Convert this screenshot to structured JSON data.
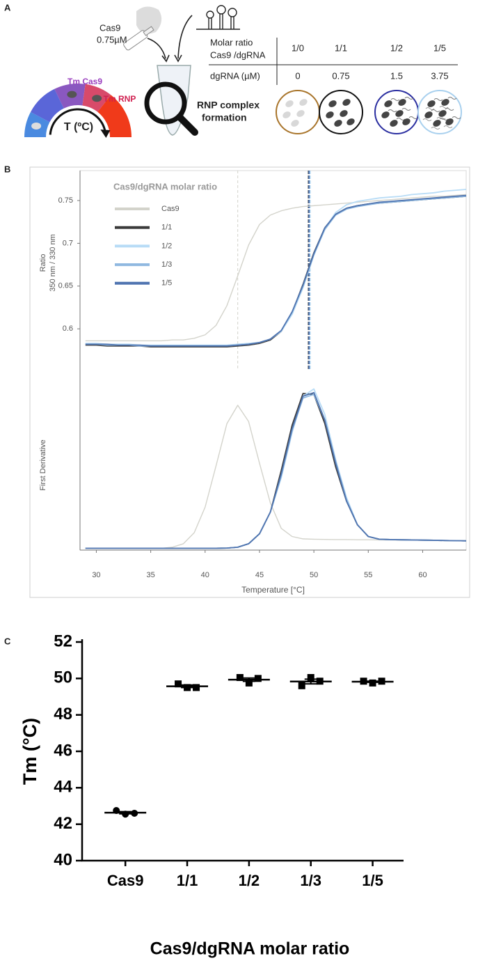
{
  "panel_labels": [
    "A",
    "B",
    "C"
  ],
  "panel_a": {
    "cas9_label": [
      "Cas9",
      "0.75µM"
    ],
    "thermometer": {
      "tm_cas9": "Tm Cas9",
      "tm_rnp": "Tm RNP",
      "axis": "T (ºC)"
    },
    "rnp_label": [
      "RNP complex",
      "formation"
    ],
    "table": {
      "row_headers": [
        [
          "Molar ratio",
          "Cas9 /dgRNA"
        ],
        "dgRNA (µM)"
      ],
      "columns": [
        [
          "1/0",
          "0"
        ],
        [
          "1/1",
          "0.75"
        ],
        [
          "1/2",
          "1.5"
        ],
        [
          "1/5",
          "3.75"
        ]
      ]
    }
  },
  "chart_data": [
    {
      "type": "line",
      "ylabel": [
        "Ratio",
        "350 nm / 330 nm"
      ],
      "legend_title": "Cas9/dgRNA molar ratio",
      "x": [
        29,
        30,
        31,
        32,
        33,
        34,
        35,
        36,
        37,
        38,
        39,
        40,
        41,
        42,
        43,
        44,
        45,
        46,
        47,
        48,
        49,
        50,
        51,
        52,
        53,
        54,
        55,
        56,
        57,
        58,
        59,
        60,
        61,
        62,
        63,
        64
      ],
      "xlim": [
        28.5,
        64
      ],
      "ylim": [
        0.553,
        0.785
      ],
      "yticks": [
        0.6,
        0.65,
        0.7,
        0.75
      ],
      "series": [
        {
          "name": "Cas9",
          "color": "#d3d3cb",
          "tm": 43,
          "values": [
            0.586,
            0.586,
            0.586,
            0.586,
            0.586,
            0.586,
            0.586,
            0.586,
            0.587,
            0.587,
            0.589,
            0.593,
            0.604,
            0.627,
            0.662,
            0.698,
            0.722,
            0.733,
            0.738,
            0.741,
            0.743,
            0.744,
            0.745,
            0.746,
            0.747,
            0.748,
            0.749,
            0.75,
            0.751,
            0.752,
            0.753,
            0.754,
            0.755,
            0.755,
            0.756,
            0.757
          ]
        },
        {
          "name": "1/1",
          "color": "#3a3a3a",
          "tm": 49.5,
          "values": [
            0.581,
            0.581,
            0.58,
            0.58,
            0.58,
            0.58,
            0.579,
            0.579,
            0.579,
            0.579,
            0.579,
            0.579,
            0.579,
            0.579,
            0.58,
            0.581,
            0.583,
            0.587,
            0.597,
            0.619,
            0.652,
            0.689,
            0.718,
            0.734,
            0.741,
            0.744,
            0.746,
            0.747,
            0.748,
            0.749,
            0.75,
            0.751,
            0.752,
            0.753,
            0.754,
            0.755
          ]
        },
        {
          "name": "1/2",
          "color": "#b8dcf6",
          "tm": 49.65,
          "values": [
            0.583,
            0.583,
            0.582,
            0.582,
            0.582,
            0.581,
            0.581,
            0.581,
            0.581,
            0.581,
            0.581,
            0.581,
            0.581,
            0.581,
            0.582,
            0.583,
            0.584,
            0.588,
            0.597,
            0.617,
            0.648,
            0.686,
            0.717,
            0.736,
            0.745,
            0.749,
            0.751,
            0.753,
            0.754,
            0.755,
            0.757,
            0.758,
            0.759,
            0.761,
            0.762,
            0.763
          ]
        },
        {
          "name": "1/3",
          "color": "#8fb8e0",
          "tm": 49.6,
          "values": [
            0.582,
            0.582,
            0.581,
            0.581,
            0.581,
            0.58,
            0.58,
            0.58,
            0.58,
            0.58,
            0.58,
            0.58,
            0.58,
            0.58,
            0.581,
            0.582,
            0.584,
            0.588,
            0.598,
            0.619,
            0.65,
            0.687,
            0.716,
            0.733,
            0.74,
            0.743,
            0.745,
            0.747,
            0.748,
            0.749,
            0.75,
            0.751,
            0.752,
            0.753,
            0.754,
            0.755
          ]
        },
        {
          "name": "1/5",
          "color": "#4f74b0",
          "tm": 49.55,
          "values": [
            0.582,
            0.582,
            0.582,
            0.581,
            0.581,
            0.581,
            0.58,
            0.58,
            0.58,
            0.58,
            0.58,
            0.58,
            0.58,
            0.58,
            0.581,
            0.582,
            0.584,
            0.588,
            0.598,
            0.62,
            0.651,
            0.688,
            0.718,
            0.734,
            0.741,
            0.744,
            0.746,
            0.748,
            0.749,
            0.75,
            0.751,
            0.752,
            0.753,
            0.754,
            0.755,
            0.756
          ]
        }
      ]
    },
    {
      "type": "line",
      "ylabel": [
        "First Derivative"
      ],
      "xlabel": "Temperature [°C]",
      "x": [
        29,
        30,
        31,
        32,
        33,
        34,
        35,
        36,
        37,
        38,
        39,
        40,
        41,
        42,
        43,
        44,
        45,
        46,
        47,
        48,
        49,
        50,
        51,
        52,
        53,
        54,
        55,
        56,
        57,
        58,
        59,
        60,
        61,
        62,
        63,
        64
      ],
      "xlim": [
        28.5,
        64
      ],
      "xticks": [
        30,
        35,
        40,
        45,
        50,
        55,
        60
      ],
      "ylim": [
        0,
        1
      ],
      "series": [
        {
          "color": "#d3d3cb",
          "values": [
            0.01,
            0.01,
            0.01,
            0.01,
            0.01,
            0.01,
            0.01,
            0.01,
            0.016,
            0.035,
            0.096,
            0.237,
            0.464,
            0.698,
            0.8,
            0.71,
            0.48,
            0.26,
            0.12,
            0.075,
            0.062,
            0.06,
            0.059,
            0.058,
            0.058,
            0.057,
            0.057,
            0.056,
            0.056,
            0.055,
            0.055,
            0.054,
            0.054,
            0.053,
            0.053,
            0.052
          ]
        },
        {
          "color": "#3a3a3a",
          "values": [
            0.01,
            0.01,
            0.01,
            0.01,
            0.01,
            0.01,
            0.01,
            0.01,
            0.01,
            0.01,
            0.01,
            0.01,
            0.01,
            0.011,
            0.016,
            0.035,
            0.09,
            0.21,
            0.44,
            0.69,
            0.865,
            0.86,
            0.7,
            0.46,
            0.27,
            0.14,
            0.075,
            0.06,
            0.058,
            0.057,
            0.056,
            0.055,
            0.054,
            0.053,
            0.052,
            0.051
          ]
        },
        {
          "color": "#b8dcf6",
          "values": [
            0.01,
            0.01,
            0.01,
            0.01,
            0.01,
            0.01,
            0.01,
            0.01,
            0.01,
            0.01,
            0.01,
            0.01,
            0.01,
            0.011,
            0.016,
            0.035,
            0.09,
            0.21,
            0.4,
            0.65,
            0.85,
            0.89,
            0.75,
            0.5,
            0.29,
            0.14,
            0.075,
            0.06,
            0.058,
            0.057,
            0.056,
            0.055,
            0.054,
            0.053,
            0.052,
            0.051
          ]
        },
        {
          "color": "#8fb8e0",
          "values": [
            0.01,
            0.01,
            0.01,
            0.01,
            0.01,
            0.01,
            0.01,
            0.01,
            0.01,
            0.01,
            0.01,
            0.01,
            0.01,
            0.011,
            0.016,
            0.035,
            0.09,
            0.21,
            0.41,
            0.66,
            0.84,
            0.86,
            0.72,
            0.49,
            0.28,
            0.14,
            0.075,
            0.06,
            0.058,
            0.057,
            0.056,
            0.055,
            0.054,
            0.053,
            0.052,
            0.051
          ]
        },
        {
          "color": "#4f74b0",
          "values": [
            0.01,
            0.01,
            0.01,
            0.01,
            0.01,
            0.01,
            0.01,
            0.01,
            0.01,
            0.01,
            0.01,
            0.01,
            0.01,
            0.011,
            0.016,
            0.035,
            0.09,
            0.21,
            0.42,
            0.67,
            0.85,
            0.87,
            0.72,
            0.48,
            0.27,
            0.14,
            0.075,
            0.06,
            0.058,
            0.057,
            0.056,
            0.055,
            0.054,
            0.053,
            0.052,
            0.051
          ]
        }
      ]
    },
    {
      "type": "scatter",
      "ylabel": "Tm (°C)",
      "xlabel": "Cas9/dgRNA molar ratio",
      "color": "#000000",
      "categories": [
        "Cas9",
        "1/1",
        "1/2",
        "1/3",
        "1/5"
      ],
      "markers": [
        "circle",
        "square",
        "square",
        "square",
        "square"
      ],
      "points": [
        [
          42.75,
          42.55,
          42.6
        ],
        [
          49.7,
          49.5,
          49.5
        ],
        [
          50.05,
          49.75,
          50.0
        ],
        [
          49.6,
          50.05,
          49.85
        ],
        [
          49.85,
          49.75,
          49.85
        ]
      ],
      "means": [
        42.63,
        49.57,
        49.93,
        49.83,
        49.82
      ],
      "sem": [
        0.06,
        0.07,
        0.09,
        0.13,
        0.03
      ],
      "ylim": [
        40,
        52
      ],
      "yticks": [
        40,
        42,
        44,
        46,
        48,
        50,
        52
      ]
    }
  ]
}
